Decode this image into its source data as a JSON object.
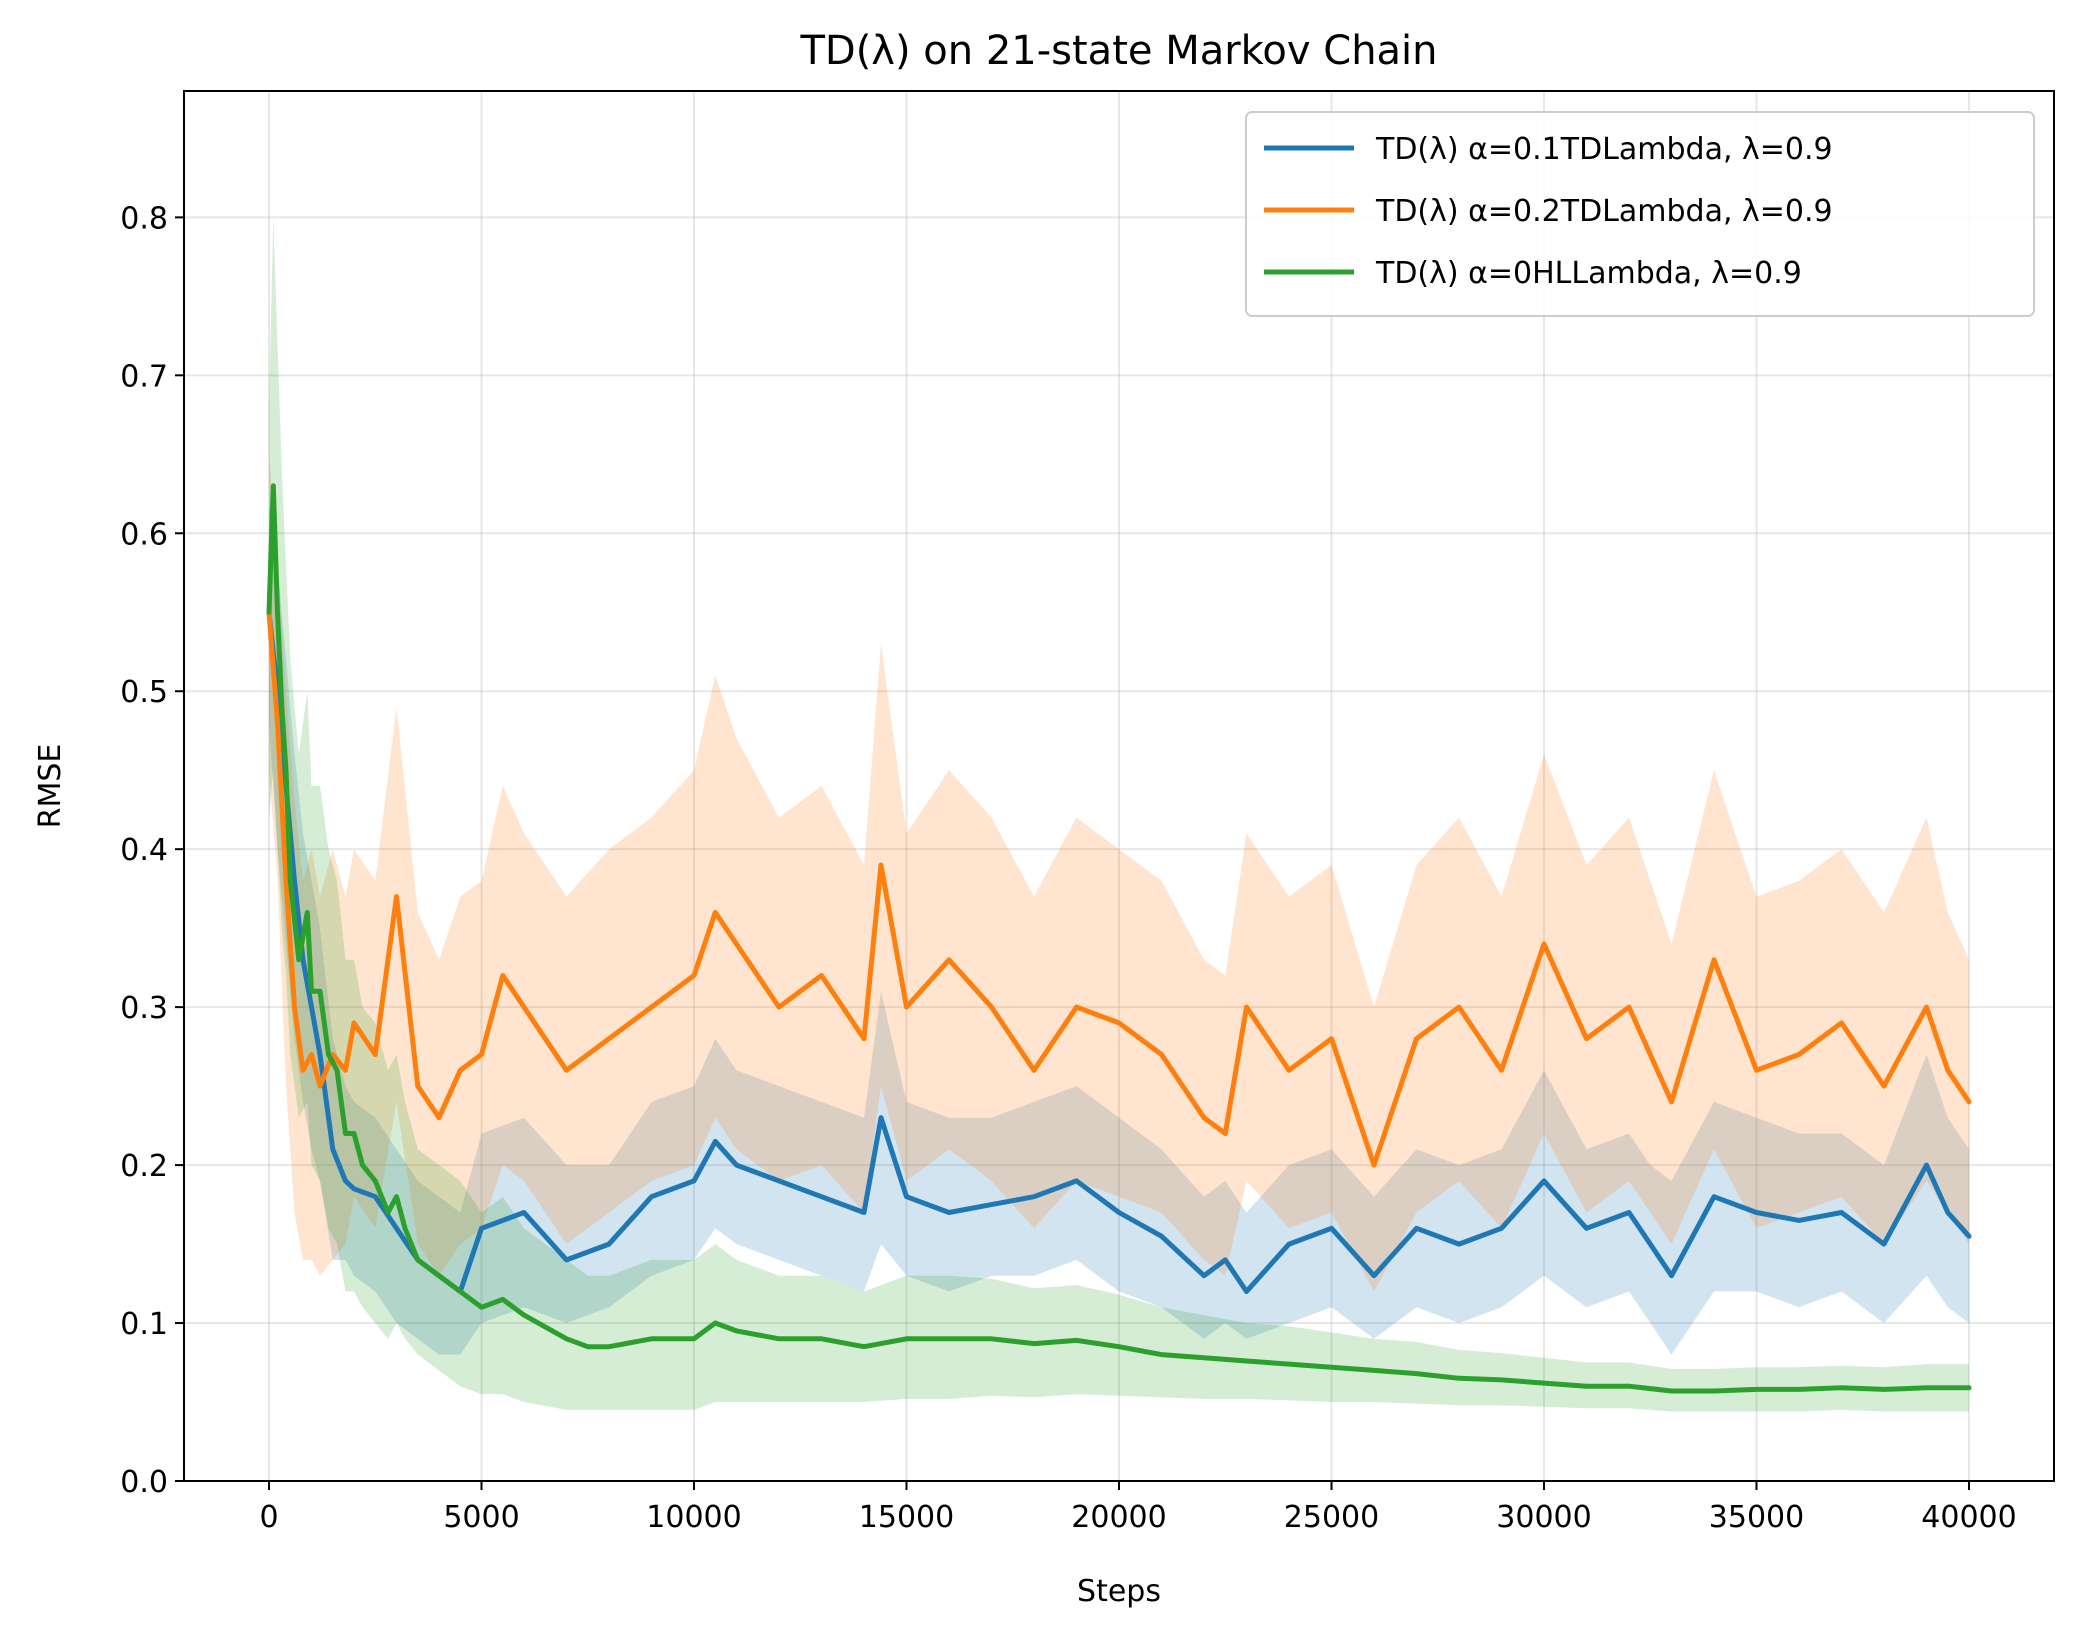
{
  "chart_data": {
    "type": "line",
    "title": "TD(λ) on 21-state Markov Chain",
    "xlabel": "Steps",
    "ylabel": "RMSE",
    "xlim": [
      -2000,
      42000
    ],
    "ylim": [
      0.0,
      0.88
    ],
    "xticks": [
      0,
      5000,
      10000,
      15000,
      20000,
      25000,
      30000,
      35000,
      40000
    ],
    "xtick_labels": [
      "0",
      "5000",
      "10000",
      "15000",
      "20000",
      "25000",
      "30000",
      "35000",
      "40000"
    ],
    "yticks": [
      0.0,
      0.1,
      0.2,
      0.3,
      0.4,
      0.5,
      0.6,
      0.7,
      0.8
    ],
    "ytick_labels": [
      "0.0",
      "0.1",
      "0.2",
      "0.3",
      "0.4",
      "0.5",
      "0.6",
      "0.7",
      "0.8"
    ],
    "grid": true,
    "legend_position": "top-right",
    "series": [
      {
        "name": "TD(λ) α=0.1TDLambda, λ=0.9",
        "color": "#1f77b4",
        "x": [
          0,
          200,
          400,
          600,
          800,
          1000,
          1200,
          1500,
          1800,
          2000,
          2500,
          3000,
          3500,
          4000,
          4500,
          5000,
          6000,
          7000,
          8000,
          9000,
          10000,
          10500,
          11000,
          12000,
          13000,
          14000,
          14400,
          15000,
          16000,
          17000,
          18000,
          19000,
          20000,
          21000,
          22000,
          22500,
          23000,
          24000,
          25000,
          26000,
          27000,
          28000,
          29000,
          30000,
          31000,
          32000,
          32500,
          33000,
          34000,
          35000,
          36000,
          37000,
          38000,
          39000,
          39500,
          40000
        ],
        "values": [
          0.55,
          0.5,
          0.44,
          0.38,
          0.33,
          0.3,
          0.27,
          0.21,
          0.19,
          0.185,
          0.18,
          0.16,
          0.14,
          0.13,
          0.12,
          0.16,
          0.17,
          0.14,
          0.15,
          0.18,
          0.19,
          0.215,
          0.2,
          0.19,
          0.18,
          0.17,
          0.23,
          0.18,
          0.17,
          0.175,
          0.18,
          0.19,
          0.17,
          0.155,
          0.13,
          0.14,
          0.12,
          0.15,
          0.16,
          0.13,
          0.16,
          0.15,
          0.16,
          0.19,
          0.16,
          0.17,
          0.15,
          0.13,
          0.18,
          0.17,
          0.165,
          0.17,
          0.15,
          0.2,
          0.17,
          0.155
        ],
        "band_lower": [
          0.48,
          0.4,
          0.34,
          0.28,
          0.24,
          0.21,
          0.19,
          0.14,
          0.14,
          0.13,
          0.12,
          0.1,
          0.09,
          0.08,
          0.08,
          0.1,
          0.11,
          0.1,
          0.11,
          0.13,
          0.14,
          0.16,
          0.15,
          0.14,
          0.13,
          0.12,
          0.15,
          0.13,
          0.12,
          0.13,
          0.13,
          0.14,
          0.12,
          0.11,
          0.09,
          0.1,
          0.09,
          0.1,
          0.11,
          0.09,
          0.11,
          0.1,
          0.11,
          0.13,
          0.11,
          0.12,
          0.1,
          0.08,
          0.12,
          0.12,
          0.11,
          0.12,
          0.1,
          0.13,
          0.11,
          0.1
        ],
        "band_upper": [
          0.62,
          0.58,
          0.52,
          0.46,
          0.41,
          0.38,
          0.35,
          0.28,
          0.25,
          0.24,
          0.23,
          0.21,
          0.19,
          0.18,
          0.17,
          0.22,
          0.23,
          0.2,
          0.2,
          0.24,
          0.25,
          0.28,
          0.26,
          0.25,
          0.24,
          0.23,
          0.31,
          0.24,
          0.23,
          0.23,
          0.24,
          0.25,
          0.23,
          0.21,
          0.18,
          0.19,
          0.17,
          0.2,
          0.21,
          0.18,
          0.21,
          0.2,
          0.21,
          0.26,
          0.21,
          0.22,
          0.2,
          0.19,
          0.24,
          0.23,
          0.22,
          0.22,
          0.2,
          0.27,
          0.23,
          0.21
        ]
      },
      {
        "name": "TD(λ) α=0.2TDLambda, λ=0.9",
        "color": "#ff7f0e",
        "x": [
          0,
          200,
          400,
          600,
          800,
          1000,
          1200,
          1500,
          1800,
          2000,
          2500,
          3000,
          3500,
          4000,
          4500,
          5000,
          5500,
          6000,
          7000,
          8000,
          9000,
          10000,
          10500,
          11000,
          12000,
          13000,
          14000,
          14400,
          15000,
          16000,
          17000,
          18000,
          19000,
          20000,
          21000,
          22000,
          22500,
          23000,
          24000,
          25000,
          26000,
          27000,
          28000,
          29000,
          30000,
          31000,
          32000,
          33000,
          34000,
          35000,
          36000,
          37000,
          38000,
          39000,
          39500,
          40000
        ],
        "values": [
          0.55,
          0.48,
          0.38,
          0.3,
          0.26,
          0.27,
          0.25,
          0.27,
          0.26,
          0.29,
          0.27,
          0.37,
          0.25,
          0.23,
          0.26,
          0.27,
          0.32,
          0.3,
          0.26,
          0.28,
          0.3,
          0.32,
          0.36,
          0.34,
          0.3,
          0.32,
          0.28,
          0.39,
          0.3,
          0.33,
          0.3,
          0.26,
          0.3,
          0.29,
          0.27,
          0.23,
          0.22,
          0.3,
          0.26,
          0.28,
          0.2,
          0.28,
          0.3,
          0.26,
          0.34,
          0.28,
          0.3,
          0.24,
          0.33,
          0.26,
          0.27,
          0.29,
          0.25,
          0.3,
          0.26,
          0.24
        ],
        "band_lower": [
          0.45,
          0.38,
          0.25,
          0.17,
          0.14,
          0.14,
          0.13,
          0.14,
          0.15,
          0.18,
          0.16,
          0.24,
          0.15,
          0.13,
          0.15,
          0.16,
          0.2,
          0.19,
          0.15,
          0.17,
          0.19,
          0.2,
          0.23,
          0.21,
          0.19,
          0.2,
          0.17,
          0.25,
          0.19,
          0.21,
          0.19,
          0.16,
          0.19,
          0.18,
          0.17,
          0.14,
          0.13,
          0.19,
          0.16,
          0.17,
          0.12,
          0.17,
          0.19,
          0.16,
          0.22,
          0.17,
          0.19,
          0.15,
          0.21,
          0.16,
          0.17,
          0.18,
          0.15,
          0.19,
          0.17,
          0.15
        ],
        "band_upper": [
          0.65,
          0.58,
          0.5,
          0.43,
          0.38,
          0.4,
          0.37,
          0.4,
          0.37,
          0.4,
          0.38,
          0.49,
          0.36,
          0.33,
          0.37,
          0.38,
          0.44,
          0.41,
          0.37,
          0.4,
          0.42,
          0.45,
          0.51,
          0.47,
          0.42,
          0.44,
          0.39,
          0.53,
          0.41,
          0.45,
          0.42,
          0.37,
          0.42,
          0.4,
          0.38,
          0.33,
          0.32,
          0.41,
          0.37,
          0.39,
          0.3,
          0.39,
          0.42,
          0.37,
          0.46,
          0.39,
          0.42,
          0.34,
          0.45,
          0.37,
          0.38,
          0.4,
          0.36,
          0.42,
          0.36,
          0.33
        ]
      },
      {
        "name": "TD(λ) α=0HLLambda, λ=0.9",
        "color": "#2ca02c",
        "x": [
          0,
          100,
          200,
          300,
          400,
          500,
          700,
          900,
          1000,
          1200,
          1400,
          1600,
          1800,
          2000,
          2200,
          2500,
          2800,
          3000,
          3200,
          3500,
          4000,
          4500,
          5000,
          5500,
          6000,
          7000,
          7500,
          8000,
          9000,
          10000,
          10500,
          11000,
          12000,
          13000,
          14000,
          15000,
          16000,
          17000,
          18000,
          19000,
          20000,
          21000,
          22000,
          23000,
          24000,
          25000,
          26000,
          27000,
          28000,
          29000,
          30000,
          31000,
          32000,
          33000,
          34000,
          35000,
          36000,
          37000,
          38000,
          39000,
          40000
        ],
        "values": [
          0.55,
          0.63,
          0.55,
          0.49,
          0.45,
          0.38,
          0.33,
          0.36,
          0.31,
          0.31,
          0.27,
          0.26,
          0.22,
          0.22,
          0.2,
          0.19,
          0.17,
          0.18,
          0.16,
          0.14,
          0.13,
          0.12,
          0.11,
          0.115,
          0.105,
          0.09,
          0.085,
          0.085,
          0.09,
          0.09,
          0.1,
          0.095,
          0.09,
          0.09,
          0.085,
          0.09,
          0.09,
          0.09,
          0.087,
          0.089,
          0.085,
          0.08,
          0.078,
          0.076,
          0.074,
          0.072,
          0.07,
          0.068,
          0.065,
          0.064,
          0.062,
          0.06,
          0.06,
          0.057,
          0.057,
          0.058,
          0.058,
          0.059,
          0.058,
          0.059,
          0.059
        ],
        "band_lower": [
          0.42,
          0.45,
          0.4,
          0.35,
          0.32,
          0.27,
          0.23,
          0.24,
          0.2,
          0.19,
          0.16,
          0.15,
          0.12,
          0.12,
          0.11,
          0.1,
          0.09,
          0.1,
          0.09,
          0.08,
          0.07,
          0.06,
          0.055,
          0.055,
          0.05,
          0.045,
          0.045,
          0.045,
          0.045,
          0.045,
          0.05,
          0.05,
          0.05,
          0.05,
          0.05,
          0.052,
          0.052,
          0.054,
          0.053,
          0.055,
          0.054,
          0.053,
          0.052,
          0.052,
          0.051,
          0.05,
          0.05,
          0.049,
          0.048,
          0.048,
          0.047,
          0.046,
          0.046,
          0.044,
          0.044,
          0.044,
          0.044,
          0.045,
          0.044,
          0.044,
          0.044
        ],
        "band_upper": [
          0.68,
          0.8,
          0.72,
          0.64,
          0.58,
          0.52,
          0.46,
          0.5,
          0.44,
          0.44,
          0.4,
          0.38,
          0.33,
          0.33,
          0.3,
          0.29,
          0.26,
          0.27,
          0.24,
          0.21,
          0.2,
          0.19,
          0.17,
          0.18,
          0.16,
          0.14,
          0.13,
          0.13,
          0.14,
          0.14,
          0.15,
          0.14,
          0.13,
          0.13,
          0.12,
          0.13,
          0.13,
          0.128,
          0.122,
          0.124,
          0.118,
          0.11,
          0.105,
          0.1,
          0.098,
          0.094,
          0.09,
          0.088,
          0.083,
          0.081,
          0.078,
          0.075,
          0.075,
          0.071,
          0.071,
          0.072,
          0.072,
          0.073,
          0.072,
          0.074,
          0.074
        ]
      }
    ]
  }
}
